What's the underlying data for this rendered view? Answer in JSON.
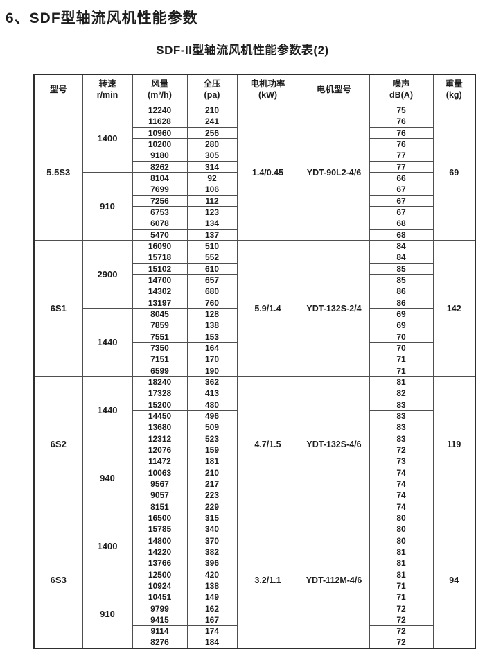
{
  "page": {
    "title": "6、SDF型轴流风机性能参数",
    "subtitle": "SDF-II型轴流风机性能参数表(2)"
  },
  "colors": {
    "ink": "#1d1d1d",
    "grid_line": "#4f4f4f",
    "background": "#ffffff"
  },
  "table": {
    "headers": [
      {
        "key": "model",
        "line1": "型号",
        "line2": ""
      },
      {
        "key": "speed",
        "line1": "转速",
        "line2": "r/min"
      },
      {
        "key": "flow",
        "line1": "风量",
        "line2": "(m³/h)"
      },
      {
        "key": "pressure",
        "line1": "全压",
        "line2": "(pa)"
      },
      {
        "key": "power",
        "line1": "电机功率",
        "line2": "(kW)"
      },
      {
        "key": "motor",
        "line1": "电机型号",
        "line2": ""
      },
      {
        "key": "noise",
        "line1": "噪声",
        "line2": "dB(A)"
      },
      {
        "key": "weight",
        "line1": "重量",
        "line2": "(kg)"
      }
    ],
    "blocks": [
      {
        "model": "5.5S3",
        "power": "1.4/0.45",
        "motor": "YDT-90L2-4/6",
        "weight": "69",
        "groups": [
          {
            "speed": "1400",
            "rows": [
              [
                12240,
                210,
                75
              ],
              [
                11628,
                241,
                76
              ],
              [
                10960,
                256,
                76
              ],
              [
                10200,
                280,
                76
              ],
              [
                9180,
                305,
                77
              ],
              [
                8262,
                314,
                77
              ]
            ]
          },
          {
            "speed": "910",
            "rows": [
              [
                8104,
                92,
                66
              ],
              [
                7699,
                106,
                67
              ],
              [
                7256,
                112,
                67
              ],
              [
                6753,
                123,
                67
              ],
              [
                6078,
                134,
                68
              ],
              [
                5470,
                137,
                68
              ]
            ]
          }
        ]
      },
      {
        "model": "6S1",
        "power": "5.9/1.4",
        "motor": "YDT-132S-2/4",
        "weight": "142",
        "groups": [
          {
            "speed": "2900",
            "rows": [
              [
                16090,
                510,
                84
              ],
              [
                15718,
                552,
                84
              ],
              [
                15102,
                610,
                85
              ],
              [
                14700,
                657,
                85
              ],
              [
                14302,
                680,
                86
              ],
              [
                13197,
                760,
                86
              ]
            ]
          },
          {
            "speed": "1440",
            "rows": [
              [
                8045,
                128,
                69
              ],
              [
                7859,
                138,
                69
              ],
              [
                7551,
                153,
                70
              ],
              [
                7350,
                164,
                70
              ],
              [
                7151,
                170,
                71
              ],
              [
                6599,
                190,
                71
              ]
            ]
          }
        ]
      },
      {
        "model": "6S2",
        "power": "4.7/1.5",
        "motor": "YDT-132S-4/6",
        "weight": "119",
        "groups": [
          {
            "speed": "1440",
            "rows": [
              [
                18240,
                362,
                81
              ],
              [
                17328,
                413,
                82
              ],
              [
                15200,
                480,
                83
              ],
              [
                14450,
                496,
                83
              ],
              [
                13680,
                509,
                83
              ],
              [
                12312,
                523,
                83
              ]
            ]
          },
          {
            "speed": "940",
            "rows": [
              [
                12076,
                159,
                72
              ],
              [
                11472,
                181,
                73
              ],
              [
                10063,
                210,
                74
              ],
              [
                9567,
                217,
                74
              ],
              [
                9057,
                223,
                74
              ],
              [
                8151,
                229,
                74
              ]
            ]
          }
        ]
      },
      {
        "model": "6S3",
        "power": "3.2/1.1",
        "motor": "YDT-112M-4/6",
        "weight": "94",
        "groups": [
          {
            "speed": "1400",
            "rows": [
              [
                16500,
                315,
                80
              ],
              [
                15785,
                340,
                80
              ],
              [
                14800,
                370,
                80
              ],
              [
                14220,
                382,
                81
              ],
              [
                13766,
                396,
                81
              ],
              [
                12500,
                420,
                81
              ]
            ]
          },
          {
            "speed": "910",
            "rows": [
              [
                10924,
                138,
                71
              ],
              [
                10451,
                149,
                71
              ],
              [
                9799,
                162,
                72
              ],
              [
                9415,
                167,
                72
              ],
              [
                9114,
                174,
                72
              ],
              [
                8276,
                184,
                72
              ]
            ]
          }
        ]
      }
    ]
  }
}
